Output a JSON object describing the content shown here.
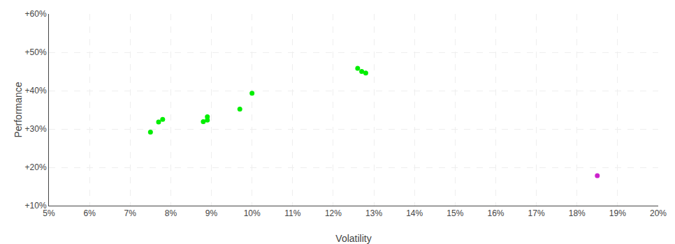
{
  "chart_data": {
    "type": "scatter",
    "xlabel": "Volatility",
    "ylabel": "Performance",
    "series": [
      {
        "color": "#00ee00",
        "x": [
          0.078,
          0.077,
          0.075,
          0.089,
          0.089,
          0.088,
          0.097,
          0.1,
          0.126,
          0.127,
          0.128
        ],
        "values": [
          0.325,
          0.318,
          0.292,
          0.332,
          0.323,
          0.319,
          0.352,
          0.393,
          0.458,
          0.45,
          0.446
        ]
      },
      {
        "color": "#cc22cc",
        "x": [
          0.185
        ],
        "values": [
          0.178
        ]
      }
    ],
    "xlim": [
      0.05,
      0.2
    ],
    "ylim": [
      0.1,
      0.6
    ],
    "xticks": [
      {
        "value": 0.05,
        "label": "5%"
      },
      {
        "value": 0.06,
        "label": "6%"
      },
      {
        "value": 0.07,
        "label": "7%"
      },
      {
        "value": 0.08,
        "label": "8%"
      },
      {
        "value": 0.09,
        "label": "9%"
      },
      {
        "value": 0.1,
        "label": "10%"
      },
      {
        "value": 0.11,
        "label": "11%"
      },
      {
        "value": 0.12,
        "label": "12%"
      },
      {
        "value": 0.13,
        "label": "13%"
      },
      {
        "value": 0.14,
        "label": "14%"
      },
      {
        "value": 0.15,
        "label": "15%"
      },
      {
        "value": 0.16,
        "label": "16%"
      },
      {
        "value": 0.17,
        "label": "17%"
      },
      {
        "value": 0.18,
        "label": "18%"
      },
      {
        "value": 0.19,
        "label": "19%"
      },
      {
        "value": 0.2,
        "label": "20%"
      }
    ],
    "yticks": [
      {
        "value": 0.1,
        "label": "+10%"
      },
      {
        "value": 0.2,
        "label": "+20%"
      },
      {
        "value": 0.3,
        "label": "+30%"
      },
      {
        "value": 0.4,
        "label": "+40%"
      },
      {
        "value": 0.5,
        "label": "+50%"
      },
      {
        "value": 0.6,
        "label": "+60%"
      }
    ],
    "grid": true
  }
}
